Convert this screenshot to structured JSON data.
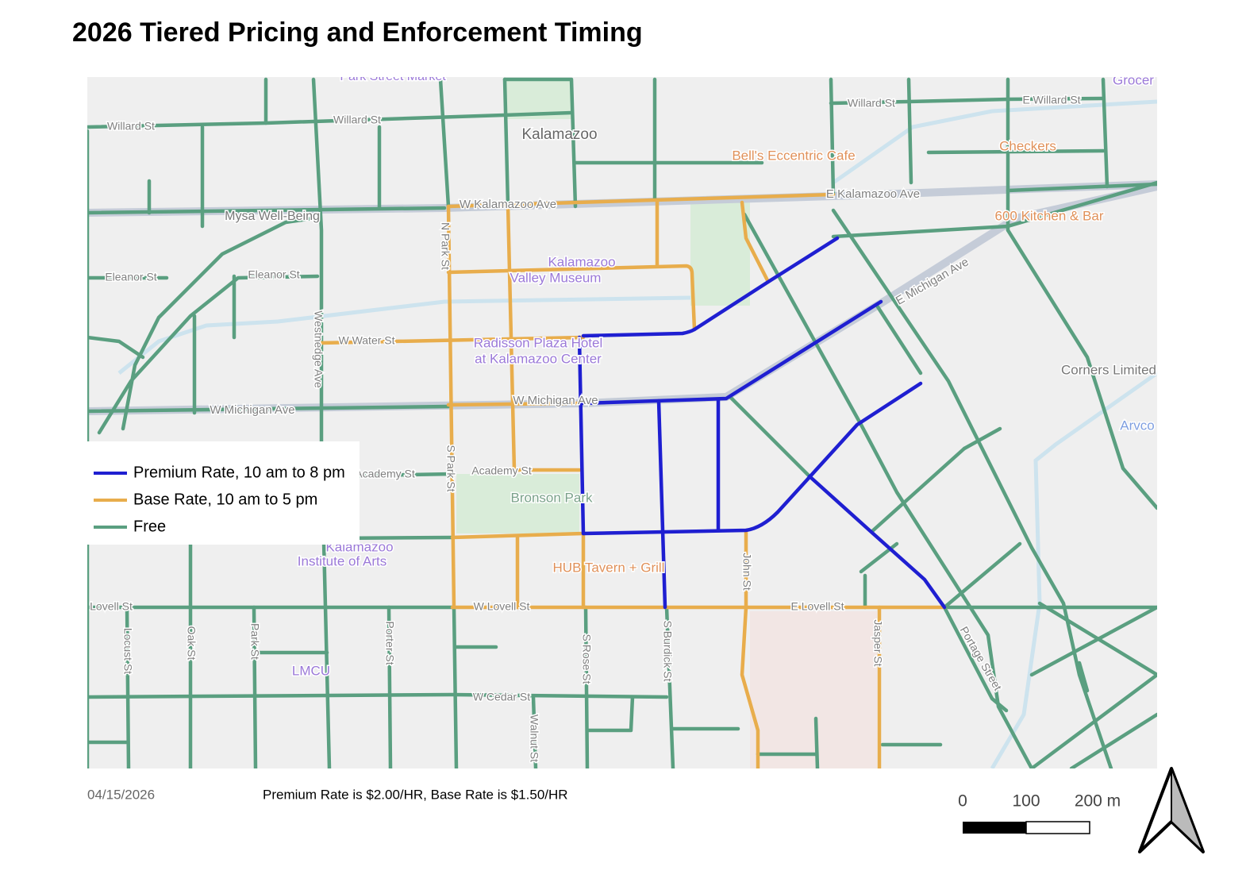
{
  "title": "2026 Tiered Pricing and Enforcement Timing",
  "legend": [
    {
      "label": "Premium Rate, 10 am to 8 pm",
      "color": "#1f1fd1"
    },
    {
      "label": "Base Rate, 10 am to 5 pm",
      "color": "#e8ad4c"
    },
    {
      "label": "Free",
      "color": "#5a9f80"
    }
  ],
  "footer": {
    "date": "04/15/2026",
    "note": "Premium Rate is $2.00/HR, Base Rate is $1.50/HR"
  },
  "scale_bar": {
    "labels": [
      "0",
      "100",
      "200 m"
    ]
  },
  "map_labels": [
    "Park Street Market",
    "Kalamazoo",
    "Bell's Eccentric Cafe",
    "Checkers",
    "600 Kitchen & Bar",
    "Grocer",
    "Mysa Well-Being",
    "Kalamazoo",
    "Valley Museum",
    "Radisson Plaza Hotel",
    "at Kalamazoo Center",
    "Corners Limited",
    "Arvco",
    "Bronson Park",
    "Kalamazoo",
    "Institute of Arts",
    "HUB Tavern + Grill",
    "LMCU",
    "Willard St",
    "Willard St",
    "Willard St",
    "E Willard St",
    "W Kalamazoo Ave",
    "E Kalamazoo Ave",
    "W Michigan Ave",
    "W Michigan Ave",
    "E Michigan Ave",
    "Eleanor St",
    "Eleanor St",
    "W Water St",
    "Academy St",
    "Academy St",
    "W Lovell St",
    "E Lovell St",
    "W Cedar St",
    "Lovell St",
    "N Park St",
    "S Park St",
    "S Rose St",
    "S Burdick St",
    "John St",
    "Jasper St",
    "Portage Street",
    "Porter St",
    "Westnedge Ave",
    "Oak St",
    "Locust St",
    "Park St",
    "Walnut St"
  ]
}
